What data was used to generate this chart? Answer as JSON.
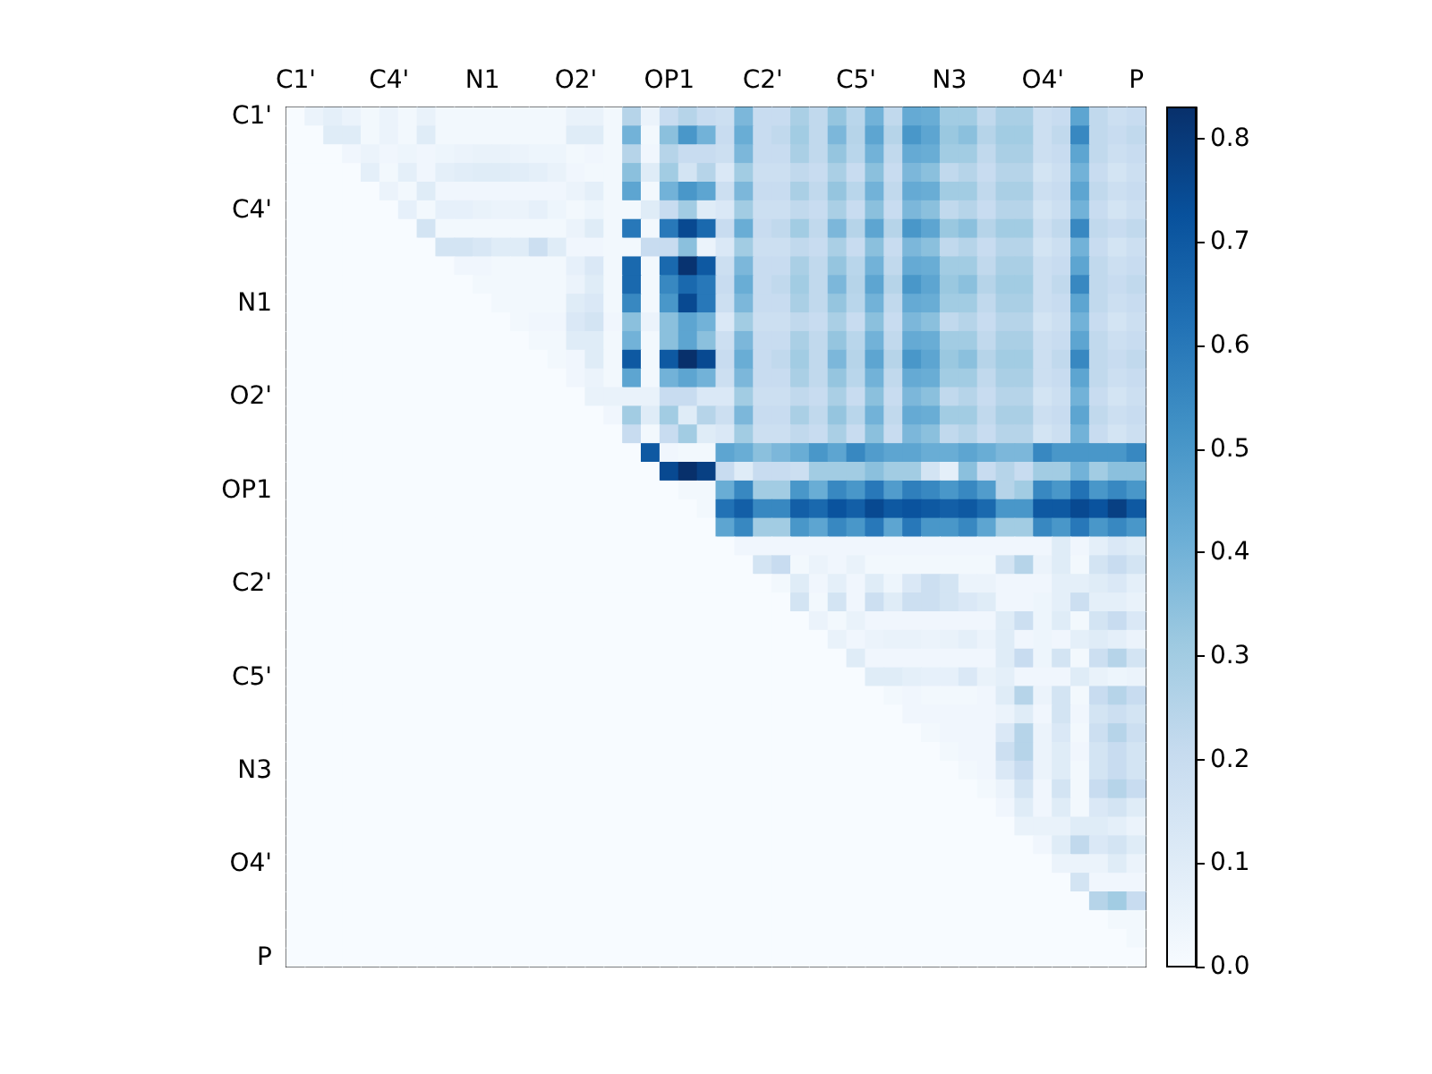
{
  "chart_data": {
    "type": "heatmap",
    "categories": [
      "C1'",
      null,
      null,
      null,
      null,
      "C4'",
      null,
      null,
      null,
      null,
      "N1",
      null,
      null,
      null,
      null,
      "O2'",
      null,
      null,
      null,
      null,
      "OP1",
      null,
      null,
      null,
      null,
      "C2'",
      null,
      null,
      null,
      null,
      "C5'",
      null,
      null,
      null,
      null,
      "N3",
      null,
      null,
      null,
      null,
      "O4'",
      null,
      null,
      null,
      null,
      "P"
    ],
    "y_categories": [
      "C1'",
      null,
      null,
      null,
      null,
      "C4'",
      null,
      null,
      null,
      null,
      "N1",
      null,
      null,
      null,
      null,
      "O2'",
      null,
      null,
      null,
      null,
      "OP1",
      null,
      null,
      null,
      null,
      "C2'",
      null,
      null,
      null,
      null,
      "C5'",
      null,
      null,
      null,
      null,
      "N3",
      null,
      null,
      null,
      null,
      "O4'",
      null,
      null,
      null,
      null,
      "P"
    ],
    "cells": [
      [
        0,
        0.05,
        0.08,
        0.05,
        0.02,
        0.05,
        0.02,
        0.06,
        0.02,
        0.02,
        0.02,
        0.02,
        0.02,
        0.02,
        0.02,
        0.06,
        0.06,
        0.02,
        0.25,
        0.05,
        0.2,
        0.25,
        0.2,
        0.18,
        0.38,
        0.2,
        0.2,
        0.28,
        0.22,
        0.33,
        0.24,
        0.4,
        0.22,
        0.43,
        0.42,
        0.3,
        0.3,
        0.22,
        0.28,
        0.28,
        0.18,
        0.2,
        0.45,
        0.22,
        0.18,
        0.2
      ],
      [
        0,
        0,
        0.1,
        0.1,
        0.02,
        0.05,
        0.02,
        0.1,
        0.02,
        0.02,
        0.02,
        0.02,
        0.02,
        0.02,
        0.02,
        0.1,
        0.1,
        0.02,
        0.4,
        0.02,
        0.35,
        0.5,
        0.4,
        0.2,
        0.42,
        0.2,
        0.22,
        0.3,
        0.22,
        0.38,
        0.25,
        0.45,
        0.25,
        0.5,
        0.45,
        0.32,
        0.35,
        0.25,
        0.3,
        0.3,
        0.18,
        0.22,
        0.55,
        0.22,
        0.2,
        0.22
      ],
      [
        0,
        0,
        0,
        0.03,
        0.05,
        0.03,
        0.04,
        0.03,
        0.04,
        0.05,
        0.06,
        0.06,
        0.05,
        0.04,
        0.04,
        0.02,
        0.03,
        0.02,
        0.25,
        0.03,
        0.25,
        0.2,
        0.2,
        0.18,
        0.38,
        0.2,
        0.2,
        0.28,
        0.22,
        0.33,
        0.24,
        0.4,
        0.22,
        0.43,
        0.42,
        0.3,
        0.3,
        0.22,
        0.28,
        0.28,
        0.18,
        0.2,
        0.45,
        0.22,
        0.18,
        0.2
      ],
      [
        0,
        0,
        0,
        0,
        0.08,
        0.02,
        0.08,
        0.03,
        0.08,
        0.09,
        0.1,
        0.1,
        0.09,
        0.08,
        0.06,
        0.03,
        0.02,
        0.02,
        0.35,
        0.1,
        0.3,
        0.15,
        0.25,
        0.12,
        0.3,
        0.18,
        0.18,
        0.22,
        0.2,
        0.28,
        0.2,
        0.35,
        0.2,
        0.38,
        0.35,
        0.22,
        0.25,
        0.2,
        0.25,
        0.25,
        0.15,
        0.18,
        0.4,
        0.2,
        0.15,
        0.18
      ],
      [
        0,
        0,
        0,
        0,
        0,
        0.05,
        0.02,
        0.1,
        0.03,
        0.03,
        0.03,
        0.03,
        0.03,
        0.03,
        0.03,
        0.05,
        0.08,
        0.02,
        0.45,
        0.02,
        0.4,
        0.5,
        0.45,
        0.18,
        0.38,
        0.2,
        0.2,
        0.28,
        0.22,
        0.33,
        0.24,
        0.4,
        0.22,
        0.43,
        0.42,
        0.3,
        0.3,
        0.22,
        0.28,
        0.28,
        0.18,
        0.2,
        0.45,
        0.22,
        0.18,
        0.2
      ],
      [
        0,
        0,
        0,
        0,
        0,
        0,
        0.07,
        0.02,
        0.07,
        0.07,
        0.06,
        0.05,
        0.05,
        0.07,
        0.04,
        0.02,
        0.04,
        0.02,
        0.02,
        0.1,
        0.2,
        0.3,
        0.1,
        0.12,
        0.3,
        0.18,
        0.18,
        0.22,
        0.2,
        0.28,
        0.2,
        0.35,
        0.2,
        0.38,
        0.35,
        0.22,
        0.25,
        0.2,
        0.25,
        0.25,
        0.15,
        0.18,
        0.4,
        0.2,
        0.15,
        0.18
      ],
      [
        0,
        0,
        0,
        0,
        0,
        0,
        0,
        0.15,
        0.02,
        0.02,
        0.02,
        0.02,
        0.02,
        0.02,
        0.02,
        0.05,
        0.1,
        0.02,
        0.6,
        0.02,
        0.6,
        0.75,
        0.65,
        0.2,
        0.42,
        0.2,
        0.22,
        0.3,
        0.22,
        0.38,
        0.25,
        0.45,
        0.25,
        0.5,
        0.45,
        0.32,
        0.35,
        0.25,
        0.3,
        0.3,
        0.18,
        0.22,
        0.55,
        0.22,
        0.2,
        0.22
      ],
      [
        0,
        0,
        0,
        0,
        0,
        0,
        0,
        0,
        0.15,
        0.15,
        0.13,
        0.1,
        0.1,
        0.18,
        0.1,
        0.03,
        0.03,
        0.02,
        0.02,
        0.2,
        0.2,
        0.35,
        0.05,
        0.12,
        0.3,
        0.18,
        0.18,
        0.22,
        0.2,
        0.28,
        0.2,
        0.35,
        0.2,
        0.38,
        0.35,
        0.22,
        0.25,
        0.2,
        0.25,
        0.25,
        0.15,
        0.18,
        0.4,
        0.2,
        0.15,
        0.18
      ],
      [
        0,
        0,
        0,
        0,
        0,
        0,
        0,
        0,
        0,
        0.03,
        0.03,
        0.02,
        0.02,
        0.02,
        0.02,
        0.07,
        0.12,
        0.02,
        0.65,
        0.02,
        0.65,
        0.82,
        0.7,
        0.18,
        0.38,
        0.2,
        0.2,
        0.28,
        0.22,
        0.33,
        0.24,
        0.4,
        0.22,
        0.43,
        0.42,
        0.3,
        0.3,
        0.22,
        0.28,
        0.28,
        0.18,
        0.2,
        0.45,
        0.22,
        0.18,
        0.2
      ],
      [
        0,
        0,
        0,
        0,
        0,
        0,
        0,
        0,
        0,
        0,
        0.02,
        0.02,
        0.02,
        0.02,
        0.02,
        0.05,
        0.1,
        0.02,
        0.65,
        0.02,
        0.55,
        0.65,
        0.6,
        0.2,
        0.42,
        0.2,
        0.22,
        0.3,
        0.22,
        0.38,
        0.25,
        0.45,
        0.25,
        0.5,
        0.45,
        0.32,
        0.35,
        0.25,
        0.3,
        0.3,
        0.18,
        0.22,
        0.55,
        0.22,
        0.2,
        0.22
      ],
      [
        0,
        0,
        0,
        0,
        0,
        0,
        0,
        0,
        0,
        0,
        0,
        0.02,
        0.02,
        0.02,
        0.02,
        0.1,
        0.12,
        0.02,
        0.55,
        0.02,
        0.5,
        0.75,
        0.6,
        0.18,
        0.38,
        0.2,
        0.2,
        0.28,
        0.22,
        0.33,
        0.24,
        0.4,
        0.22,
        0.43,
        0.42,
        0.3,
        0.3,
        0.22,
        0.28,
        0.28,
        0.18,
        0.2,
        0.45,
        0.22,
        0.18,
        0.2
      ],
      [
        0,
        0,
        0,
        0,
        0,
        0,
        0,
        0,
        0,
        0,
        0,
        0,
        0.02,
        0.03,
        0.03,
        0.12,
        0.15,
        0.03,
        0.35,
        0.05,
        0.35,
        0.45,
        0.4,
        0.12,
        0.3,
        0.18,
        0.18,
        0.22,
        0.2,
        0.28,
        0.2,
        0.35,
        0.2,
        0.38,
        0.35,
        0.22,
        0.25,
        0.2,
        0.25,
        0.25,
        0.15,
        0.18,
        0.4,
        0.2,
        0.15,
        0.18
      ],
      [
        0,
        0,
        0,
        0,
        0,
        0,
        0,
        0,
        0,
        0,
        0,
        0,
        0,
        0.02,
        0.02,
        0.1,
        0.1,
        0.02,
        0.4,
        0.02,
        0.35,
        0.45,
        0.35,
        0.18,
        0.38,
        0.2,
        0.2,
        0.28,
        0.22,
        0.33,
        0.24,
        0.4,
        0.22,
        0.43,
        0.42,
        0.3,
        0.3,
        0.22,
        0.28,
        0.28,
        0.18,
        0.2,
        0.45,
        0.22,
        0.18,
        0.2
      ],
      [
        0,
        0,
        0,
        0,
        0,
        0,
        0,
        0,
        0,
        0,
        0,
        0,
        0,
        0,
        0.02,
        0.03,
        0.1,
        0.02,
        0.7,
        0.02,
        0.7,
        0.83,
        0.75,
        0.2,
        0.42,
        0.2,
        0.22,
        0.3,
        0.22,
        0.38,
        0.25,
        0.45,
        0.25,
        0.5,
        0.45,
        0.32,
        0.35,
        0.25,
        0.3,
        0.3,
        0.18,
        0.22,
        0.55,
        0.22,
        0.2,
        0.22
      ],
      [
        0,
        0,
        0,
        0,
        0,
        0,
        0,
        0,
        0,
        0,
        0,
        0,
        0,
        0,
        0,
        0.03,
        0.05,
        0.02,
        0.45,
        0.02,
        0.4,
        0.45,
        0.4,
        0.18,
        0.38,
        0.2,
        0.2,
        0.28,
        0.22,
        0.33,
        0.24,
        0.4,
        0.22,
        0.43,
        0.42,
        0.3,
        0.3,
        0.22,
        0.28,
        0.28,
        0.18,
        0.2,
        0.45,
        0.22,
        0.18,
        0.2
      ],
      [
        0,
        0,
        0,
        0,
        0,
        0,
        0,
        0,
        0,
        0,
        0,
        0,
        0,
        0,
        0,
        0,
        0.06,
        0.06,
        0.06,
        0.06,
        0.2,
        0.2,
        0.12,
        0.12,
        0.3,
        0.18,
        0.18,
        0.22,
        0.2,
        0.28,
        0.2,
        0.35,
        0.2,
        0.38,
        0.35,
        0.22,
        0.25,
        0.2,
        0.25,
        0.25,
        0.15,
        0.18,
        0.4,
        0.2,
        0.15,
        0.18
      ],
      [
        0,
        0,
        0,
        0,
        0,
        0,
        0,
        0,
        0,
        0,
        0,
        0,
        0,
        0,
        0,
        0,
        0,
        0.03,
        0.3,
        0.1,
        0.3,
        0.1,
        0.25,
        0.18,
        0.38,
        0.2,
        0.2,
        0.28,
        0.22,
        0.33,
        0.24,
        0.4,
        0.22,
        0.43,
        0.42,
        0.3,
        0.3,
        0.22,
        0.28,
        0.28,
        0.18,
        0.2,
        0.45,
        0.22,
        0.18,
        0.2
      ],
      [
        0,
        0,
        0,
        0,
        0,
        0,
        0,
        0,
        0,
        0,
        0,
        0,
        0,
        0,
        0,
        0,
        0,
        0,
        0.2,
        0.02,
        0.2,
        0.3,
        0.1,
        0.12,
        0.3,
        0.18,
        0.18,
        0.22,
        0.2,
        0.28,
        0.2,
        0.35,
        0.2,
        0.38,
        0.35,
        0.22,
        0.25,
        0.2,
        0.25,
        0.25,
        0.15,
        0.18,
        0.4,
        0.2,
        0.15,
        0.18
      ],
      [
        0,
        0,
        0,
        0,
        0,
        0,
        0,
        0,
        0,
        0,
        0,
        0,
        0,
        0,
        0,
        0,
        0,
        0,
        0,
        0.7,
        0.03,
        0.02,
        0.02,
        0.45,
        0.42,
        0.35,
        0.38,
        0.42,
        0.5,
        0.45,
        0.55,
        0.48,
        0.45,
        0.45,
        0.42,
        0.42,
        0.45,
        0.42,
        0.38,
        0.38,
        0.55,
        0.5,
        0.5,
        0.5,
        0.5,
        0.55
      ],
      [
        0,
        0,
        0,
        0,
        0,
        0,
        0,
        0,
        0,
        0,
        0,
        0,
        0,
        0,
        0,
        0,
        0,
        0,
        0,
        0,
        0.75,
        0.83,
        0.78,
        0.2,
        0.1,
        0.2,
        0.2,
        0.18,
        0.3,
        0.3,
        0.3,
        0.35,
        0.3,
        0.3,
        0.15,
        0.08,
        0.35,
        0.2,
        0.25,
        0.2,
        0.3,
        0.3,
        0.4,
        0.3,
        0.35,
        0.35
      ],
      [
        0,
        0,
        0,
        0,
        0,
        0,
        0,
        0,
        0,
        0,
        0,
        0,
        0,
        0,
        0,
        0,
        0,
        0,
        0,
        0,
        0,
        0.02,
        0.02,
        0.42,
        0.55,
        0.3,
        0.3,
        0.5,
        0.42,
        0.55,
        0.5,
        0.6,
        0.48,
        0.58,
        0.55,
        0.5,
        0.55,
        0.48,
        0.25,
        0.3,
        0.55,
        0.5,
        0.62,
        0.5,
        0.55,
        0.5
      ],
      [
        0,
        0,
        0,
        0,
        0,
        0,
        0,
        0,
        0,
        0,
        0,
        0,
        0,
        0,
        0,
        0,
        0,
        0,
        0,
        0,
        0,
        0,
        0.02,
        0.62,
        0.68,
        0.55,
        0.55,
        0.68,
        0.65,
        0.72,
        0.68,
        0.75,
        0.7,
        0.72,
        0.7,
        0.68,
        0.7,
        0.65,
        0.5,
        0.5,
        0.7,
        0.7,
        0.75,
        0.72,
        0.78,
        0.7
      ],
      [
        0,
        0,
        0,
        0,
        0,
        0,
        0,
        0,
        0,
        0,
        0,
        0,
        0,
        0,
        0,
        0,
        0,
        0,
        0,
        0,
        0,
        0,
        0,
        0.45,
        0.55,
        0.3,
        0.3,
        0.5,
        0.45,
        0.55,
        0.5,
        0.6,
        0.45,
        0.6,
        0.5,
        0.5,
        0.55,
        0.45,
        0.3,
        0.3,
        0.55,
        0.5,
        0.6,
        0.5,
        0.55,
        0.5
      ],
      [
        0,
        0,
        0,
        0,
        0,
        0,
        0,
        0,
        0,
        0,
        0,
        0,
        0,
        0,
        0,
        0,
        0,
        0,
        0,
        0,
        0,
        0,
        0,
        0,
        0.03,
        0.03,
        0.03,
        0.03,
        0.03,
        0.03,
        0.03,
        0.03,
        0.03,
        0.03,
        0.03,
        0.03,
        0.03,
        0.03,
        0.03,
        0.03,
        0.03,
        0.1,
        0.03,
        0.08,
        0.12,
        0.1
      ],
      [
        0,
        0,
        0,
        0,
        0,
        0,
        0,
        0,
        0,
        0,
        0,
        0,
        0,
        0,
        0,
        0,
        0,
        0,
        0,
        0,
        0,
        0,
        0,
        0,
        0,
        0.15,
        0.2,
        0.02,
        0.05,
        0.03,
        0.06,
        0.02,
        0.02,
        0.02,
        0.02,
        0.02,
        0.02,
        0.02,
        0.15,
        0.25,
        0.05,
        0.1,
        0.02,
        0.15,
        0.2,
        0.15
      ],
      [
        0,
        0,
        0,
        0,
        0,
        0,
        0,
        0,
        0,
        0,
        0,
        0,
        0,
        0,
        0,
        0,
        0,
        0,
        0,
        0,
        0,
        0,
        0,
        0,
        0,
        0,
        0.02,
        0.1,
        0.03,
        0.08,
        0.03,
        0.1,
        0.04,
        0.12,
        0.18,
        0.15,
        0.05,
        0.05,
        0.03,
        0.03,
        0.03,
        0.08,
        0.08,
        0.1,
        0.12,
        0.08
      ],
      [
        0,
        0,
        0,
        0,
        0,
        0,
        0,
        0,
        0,
        0,
        0,
        0,
        0,
        0,
        0,
        0,
        0,
        0,
        0,
        0,
        0,
        0,
        0,
        0,
        0,
        0,
        0,
        0.15,
        0.02,
        0.15,
        0.03,
        0.18,
        0.1,
        0.18,
        0.18,
        0.15,
        0.12,
        0.1,
        0.03,
        0.03,
        0.04,
        0.08,
        0.18,
        0.08,
        0.08,
        0.06
      ],
      [
        0,
        0,
        0,
        0,
        0,
        0,
        0,
        0,
        0,
        0,
        0,
        0,
        0,
        0,
        0,
        0,
        0,
        0,
        0,
        0,
        0,
        0,
        0,
        0,
        0,
        0,
        0,
        0,
        0.05,
        0.02,
        0.06,
        0.03,
        0.03,
        0.03,
        0.03,
        0.03,
        0.03,
        0.03,
        0.1,
        0.18,
        0.04,
        0.1,
        0.02,
        0.15,
        0.2,
        0.12
      ],
      [
        0,
        0,
        0,
        0,
        0,
        0,
        0,
        0,
        0,
        0,
        0,
        0,
        0,
        0,
        0,
        0,
        0,
        0,
        0,
        0,
        0,
        0,
        0,
        0,
        0,
        0,
        0,
        0,
        0,
        0.06,
        0.03,
        0.05,
        0.06,
        0.06,
        0.05,
        0.06,
        0.08,
        0.05,
        0.1,
        0.03,
        0.04,
        0.03,
        0.08,
        0.1,
        0.08,
        0.05
      ],
      [
        0,
        0,
        0,
        0,
        0,
        0,
        0,
        0,
        0,
        0,
        0,
        0,
        0,
        0,
        0,
        0,
        0,
        0,
        0,
        0,
        0,
        0,
        0,
        0,
        0,
        0,
        0,
        0,
        0,
        0,
        0.1,
        0.03,
        0.03,
        0.03,
        0.03,
        0.03,
        0.03,
        0.03,
        0.1,
        0.2,
        0.04,
        0.15,
        0.02,
        0.18,
        0.25,
        0.15
      ],
      [
        0,
        0,
        0,
        0,
        0,
        0,
        0,
        0,
        0,
        0,
        0,
        0,
        0,
        0,
        0,
        0,
        0,
        0,
        0,
        0,
        0,
        0,
        0,
        0,
        0,
        0,
        0,
        0,
        0,
        0,
        0,
        0.1,
        0.1,
        0.08,
        0.07,
        0.07,
        0.12,
        0.06,
        0.08,
        0.03,
        0.03,
        0.03,
        0.1,
        0.06,
        0.04,
        0.05
      ],
      [
        0,
        0,
        0,
        0,
        0,
        0,
        0,
        0,
        0,
        0,
        0,
        0,
        0,
        0,
        0,
        0,
        0,
        0,
        0,
        0,
        0,
        0,
        0,
        0,
        0,
        0,
        0,
        0,
        0,
        0,
        0,
        0,
        0.02,
        0.03,
        0.02,
        0.02,
        0.02,
        0.03,
        0.1,
        0.25,
        0.05,
        0.15,
        0.02,
        0.2,
        0.25,
        0.2
      ],
      [
        0,
        0,
        0,
        0,
        0,
        0,
        0,
        0,
        0,
        0,
        0,
        0,
        0,
        0,
        0,
        0,
        0,
        0,
        0,
        0,
        0,
        0,
        0,
        0,
        0,
        0,
        0,
        0,
        0,
        0,
        0,
        0,
        0,
        0.03,
        0.03,
        0.03,
        0.03,
        0.03,
        0.05,
        0.1,
        0.03,
        0.15,
        0.03,
        0.15,
        0.18,
        0.15
      ],
      [
        0,
        0,
        0,
        0,
        0,
        0,
        0,
        0,
        0,
        0,
        0,
        0,
        0,
        0,
        0,
        0,
        0,
        0,
        0,
        0,
        0,
        0,
        0,
        0,
        0,
        0,
        0,
        0,
        0,
        0,
        0,
        0,
        0,
        0,
        0.02,
        0.03,
        0.03,
        0.03,
        0.12,
        0.25,
        0.05,
        0.12,
        0.02,
        0.18,
        0.25,
        0.18
      ],
      [
        0,
        0,
        0,
        0,
        0,
        0,
        0,
        0,
        0,
        0,
        0,
        0,
        0,
        0,
        0,
        0,
        0,
        0,
        0,
        0,
        0,
        0,
        0,
        0,
        0,
        0,
        0,
        0,
        0,
        0,
        0,
        0,
        0,
        0,
        0,
        0.02,
        0.03,
        0.03,
        0.18,
        0.25,
        0.05,
        0.1,
        0.03,
        0.15,
        0.2,
        0.15
      ],
      [
        0,
        0,
        0,
        0,
        0,
        0,
        0,
        0,
        0,
        0,
        0,
        0,
        0,
        0,
        0,
        0,
        0,
        0,
        0,
        0,
        0,
        0,
        0,
        0,
        0,
        0,
        0,
        0,
        0,
        0,
        0,
        0,
        0,
        0,
        0,
        0,
        0.02,
        0.03,
        0.12,
        0.2,
        0.05,
        0.1,
        0.02,
        0.15,
        0.2,
        0.15
      ],
      [
        0,
        0,
        0,
        0,
        0,
        0,
        0,
        0,
        0,
        0,
        0,
        0,
        0,
        0,
        0,
        0,
        0,
        0,
        0,
        0,
        0,
        0,
        0,
        0,
        0,
        0,
        0,
        0,
        0,
        0,
        0,
        0,
        0,
        0,
        0,
        0,
        0,
        0.02,
        0.05,
        0.15,
        0.03,
        0.15,
        0.02,
        0.2,
        0.25,
        0.2
      ],
      [
        0,
        0,
        0,
        0,
        0,
        0,
        0,
        0,
        0,
        0,
        0,
        0,
        0,
        0,
        0,
        0,
        0,
        0,
        0,
        0,
        0,
        0,
        0,
        0,
        0,
        0,
        0,
        0,
        0,
        0,
        0,
        0,
        0,
        0,
        0,
        0,
        0,
        0,
        0.03,
        0.1,
        0.03,
        0.1,
        0.02,
        0.12,
        0.15,
        0.1
      ],
      [
        0,
        0,
        0,
        0,
        0,
        0,
        0,
        0,
        0,
        0,
        0,
        0,
        0,
        0,
        0,
        0,
        0,
        0,
        0,
        0,
        0,
        0,
        0,
        0,
        0,
        0,
        0,
        0,
        0,
        0,
        0,
        0,
        0,
        0,
        0,
        0,
        0,
        0,
        0,
        0.06,
        0.06,
        0.06,
        0.1,
        0.1,
        0.08,
        0.05
      ],
      [
        0,
        0,
        0,
        0,
        0,
        0,
        0,
        0,
        0,
        0,
        0,
        0,
        0,
        0,
        0,
        0,
        0,
        0,
        0,
        0,
        0,
        0,
        0,
        0,
        0,
        0,
        0,
        0,
        0,
        0,
        0,
        0,
        0,
        0,
        0,
        0,
        0,
        0,
        0,
        0,
        0.03,
        0.1,
        0.22,
        0.12,
        0.15,
        0.1
      ],
      [
        0,
        0,
        0,
        0,
        0,
        0,
        0,
        0,
        0,
        0,
        0,
        0,
        0,
        0,
        0,
        0,
        0,
        0,
        0,
        0,
        0,
        0,
        0,
        0,
        0,
        0,
        0,
        0,
        0,
        0,
        0,
        0,
        0,
        0,
        0,
        0,
        0,
        0,
        0,
        0,
        0,
        0.05,
        0.05,
        0.05,
        0.1,
        0.05
      ],
      [
        0,
        0,
        0,
        0,
        0,
        0,
        0,
        0,
        0,
        0,
        0,
        0,
        0,
        0,
        0,
        0,
        0,
        0,
        0,
        0,
        0,
        0,
        0,
        0,
        0,
        0,
        0,
        0,
        0,
        0,
        0,
        0,
        0,
        0,
        0,
        0,
        0,
        0,
        0,
        0,
        0,
        0,
        0.15,
        0.03,
        0.03,
        0.03
      ],
      [
        0,
        0,
        0,
        0,
        0,
        0,
        0,
        0,
        0,
        0,
        0,
        0,
        0,
        0,
        0,
        0,
        0,
        0,
        0,
        0,
        0,
        0,
        0,
        0,
        0,
        0,
        0,
        0,
        0,
        0,
        0,
        0,
        0,
        0,
        0,
        0,
        0,
        0,
        0,
        0,
        0,
        0,
        0,
        0.25,
        0.3,
        0.2
      ],
      [
        0,
        0,
        0,
        0,
        0,
        0,
        0,
        0,
        0,
        0,
        0,
        0,
        0,
        0,
        0,
        0,
        0,
        0,
        0,
        0,
        0,
        0,
        0,
        0,
        0,
        0,
        0,
        0,
        0,
        0,
        0,
        0,
        0,
        0,
        0,
        0,
        0,
        0,
        0,
        0,
        0,
        0,
        0,
        0,
        0.02,
        0.02
      ],
      [
        0,
        0,
        0,
        0,
        0,
        0,
        0,
        0,
        0,
        0,
        0,
        0,
        0,
        0,
        0,
        0,
        0,
        0,
        0,
        0,
        0,
        0,
        0,
        0,
        0,
        0,
        0,
        0,
        0,
        0,
        0,
        0,
        0,
        0,
        0,
        0,
        0,
        0,
        0,
        0,
        0,
        0,
        0,
        0,
        0,
        0.02
      ],
      [
        0,
        0,
        0,
        0,
        0,
        0,
        0,
        0,
        0,
        0,
        0,
        0,
        0,
        0,
        0,
        0,
        0,
        0,
        0,
        0,
        0,
        0,
        0,
        0,
        0,
        0,
        0,
        0,
        0,
        0,
        0,
        0,
        0,
        0,
        0,
        0,
        0,
        0,
        0,
        0,
        0,
        0,
        0,
        0,
        0,
        0
      ]
    ],
    "clim": [
      0,
      0.83
    ],
    "cticks": [
      {
        "value": 0,
        "label": "0.0"
      },
      {
        "value": 0.1,
        "label": "0.1"
      },
      {
        "value": 0.2,
        "label": "0.2"
      },
      {
        "value": 0.3,
        "label": "0.3"
      },
      {
        "value": 0.4,
        "label": "0.4"
      },
      {
        "value": 0.5,
        "label": "0.5"
      },
      {
        "value": 0.6,
        "label": "0.6"
      },
      {
        "value": 0.7,
        "label": "0.7"
      },
      {
        "value": 0.8,
        "label": "0.8"
      }
    ]
  }
}
